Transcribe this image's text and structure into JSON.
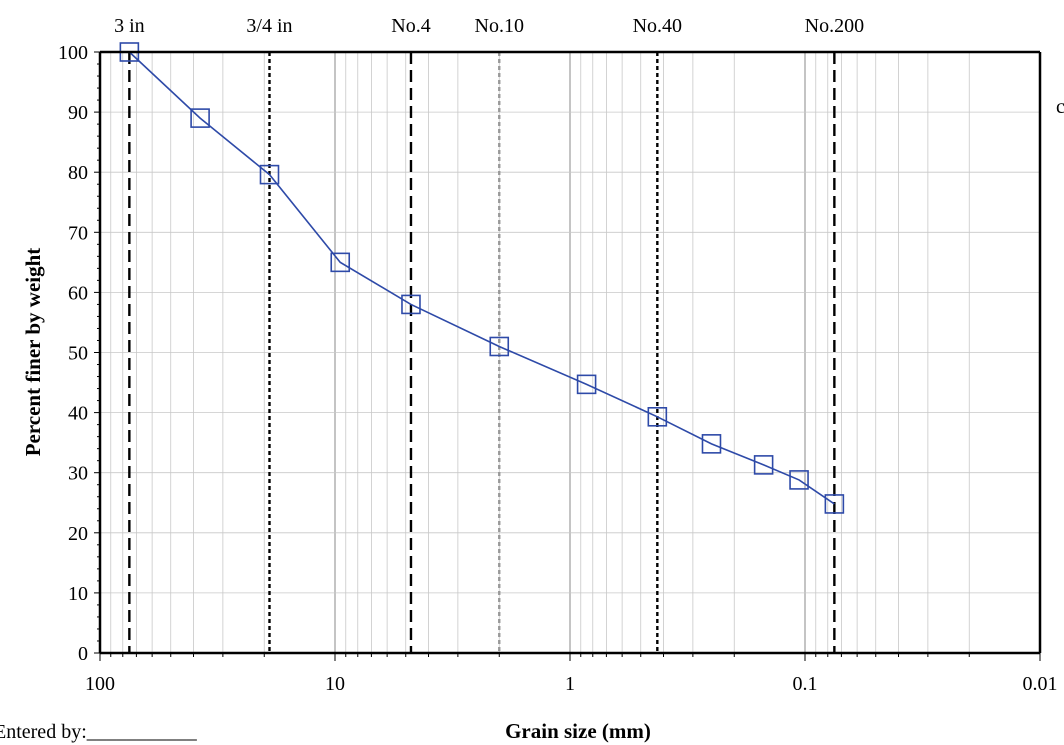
{
  "chart_data": {
    "type": "scatter",
    "xscale": "log",
    "xlim": [
      100,
      0.01
    ],
    "ylim": [
      0,
      100
    ],
    "xlabel": "Grain size (mm)",
    "ylabel": "Percent finer by weight",
    "x_ticks": [
      "100",
      "10",
      "1",
      "0.1",
      "0.01"
    ],
    "y_ticks": [
      "0",
      "10",
      "20",
      "30",
      "40",
      "50",
      "60",
      "70",
      "80",
      "90",
      "100"
    ],
    "grid": true,
    "series": [
      {
        "marker": "open-square",
        "line_color": "#2e4aa8",
        "points": [
          {
            "x": 75,
            "y": 100
          },
          {
            "x": 37.5,
            "y": 89
          },
          {
            "x": 19,
            "y": 79.6
          },
          {
            "x": 9.5,
            "y": 65
          },
          {
            "x": 4.75,
            "y": 58
          },
          {
            "x": 2,
            "y": 51
          },
          {
            "x": 0.85,
            "y": 44.7
          },
          {
            "x": 0.425,
            "y": 39.3
          },
          {
            "x": 0.25,
            "y": 34.8
          },
          {
            "x": 0.15,
            "y": 31.3
          },
          {
            "x": 0.106,
            "y": 28.8
          },
          {
            "x": 0.075,
            "y": 24.8
          }
        ]
      }
    ],
    "sieve_lines": [
      {
        "label": "3 in",
        "x": 75,
        "style": "long-dash",
        "color": "#000000"
      },
      {
        "label": "3/4 in",
        "x": 19,
        "style": "short-dash",
        "color": "#000000"
      },
      {
        "label": "No.4",
        "x": 4.75,
        "style": "long-dash",
        "color": "#000000"
      },
      {
        "label": "No.10",
        "x": 2,
        "style": "short-dash",
        "color": "#999999"
      },
      {
        "label": "No.40",
        "x": 0.425,
        "style": "short-dash",
        "color": "#000000"
      },
      {
        "label": "No.200",
        "x": 0.075,
        "style": "long-dash",
        "color": "#000000"
      }
    ]
  },
  "footer": {
    "entered_by": "Entered by:___________"
  },
  "edge_glyph": "c"
}
